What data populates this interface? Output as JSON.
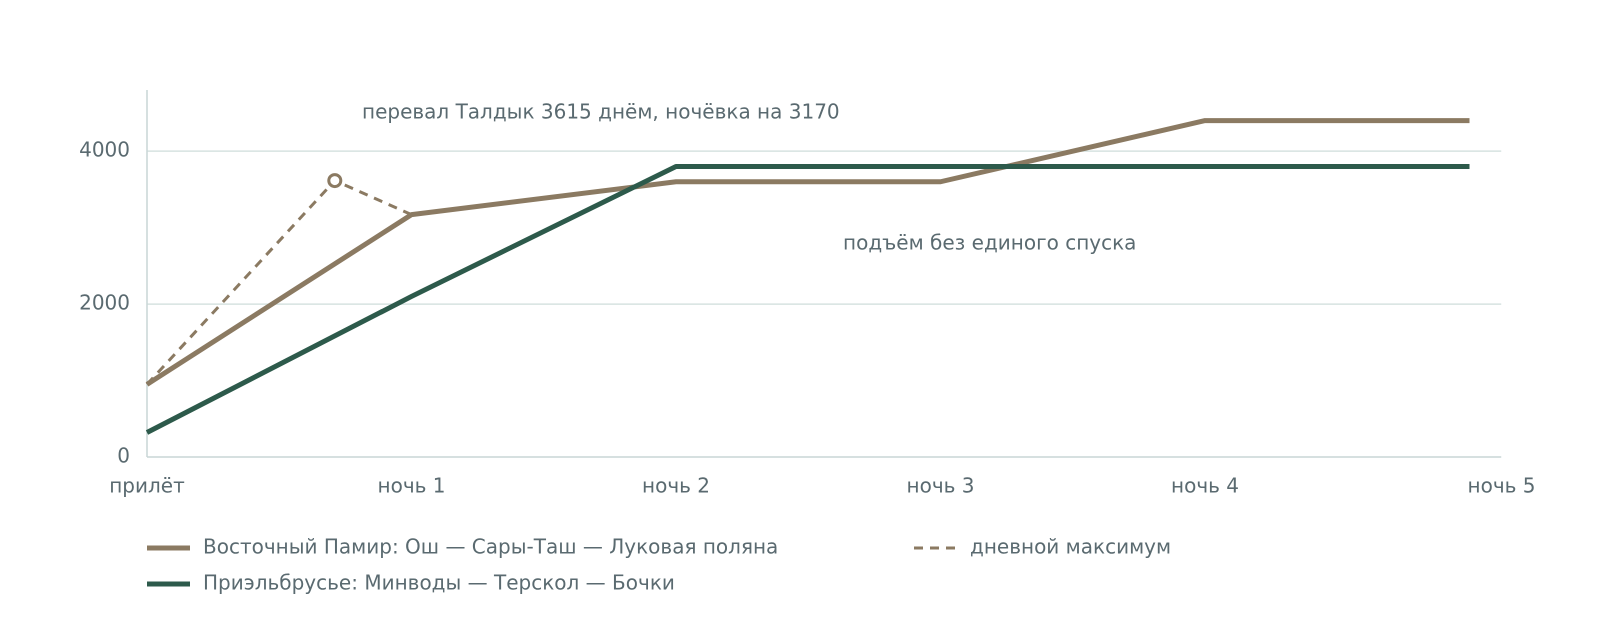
{
  "chart_data": {
    "type": "line",
    "annotations": [
      "перевал Талдык 3615 днём, ночёвка на 3170",
      "подъём без единого спуска"
    ],
    "xlim": [
      0,
      5.12
    ],
    "xticks": [
      {
        "value": 0,
        "label": "прилёт"
      },
      {
        "value": 1,
        "label": "ночь 1"
      },
      {
        "value": 2,
        "label": "ночь 2"
      },
      {
        "value": 3,
        "label": "ночь 3"
      },
      {
        "value": 4,
        "label": "ночь 4"
      },
      {
        "value": 5,
        "label": "ночь 5"
      }
    ],
    "ylim": [
      0,
      4800
    ],
    "yticks": [
      0,
      2000,
      4000
    ],
    "grid": true,
    "series": [
      {
        "name": "Восточный Памир: Ош — Сары-Таш — Луковая поляна",
        "color": "#8b7a62",
        "style": "solid",
        "x": [
          0,
          1,
          2,
          3,
          4,
          5
        ],
        "values": [
          950,
          3170,
          3600,
          3600,
          4400,
          4400
        ]
      },
      {
        "name": "Приэльбрусье: Минводы — Терскол — Бочки",
        "color": "#2d5a4b",
        "style": "solid",
        "x": [
          0,
          1,
          2,
          3,
          4,
          5
        ],
        "values": [
          320,
          2100,
          3800,
          3800,
          3800,
          3800
        ]
      },
      {
        "name": "дневной максимум",
        "color": "#8b7a62",
        "style": "dashed",
        "x": [
          0,
          0.71,
          1
        ],
        "values": [
          950,
          3615,
          3170
        ]
      }
    ]
  }
}
